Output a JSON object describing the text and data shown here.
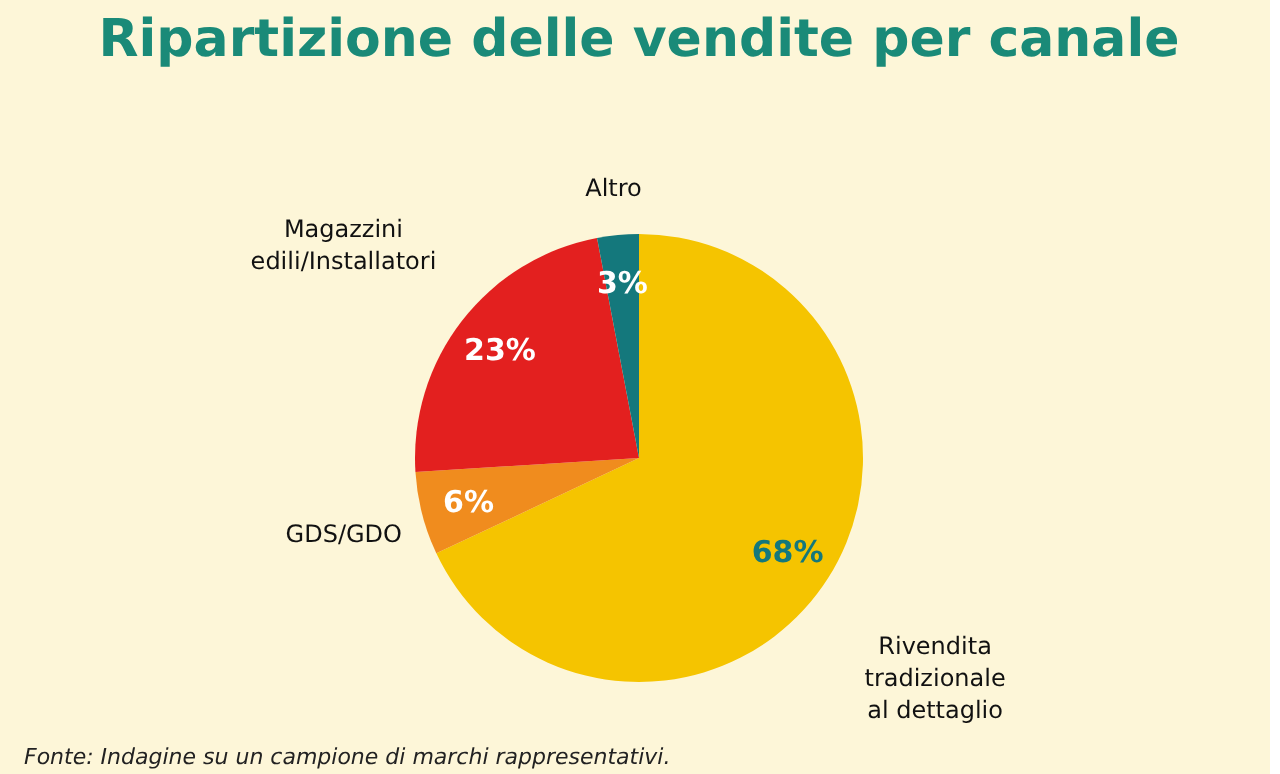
{
  "chart_data": {
    "type": "pie",
    "title": "Ripartizione delle vendite per canale",
    "categories": [
      "Rivendita tradizionale al dettaglio",
      "GDS/GDO",
      "Magazzini edili/Installatori",
      "Altro"
    ],
    "values": [
      68,
      6,
      23,
      3
    ],
    "colors": [
      "#f5c400",
      "#f08c1e",
      "#e3201f",
      "#14787c"
    ],
    "value_labels": [
      "68%",
      "6%",
      "23%",
      "3%"
    ],
    "legend": false,
    "annotations": [
      "Fonte: Indagine su un campione di marchi rappresentativi."
    ]
  }
}
